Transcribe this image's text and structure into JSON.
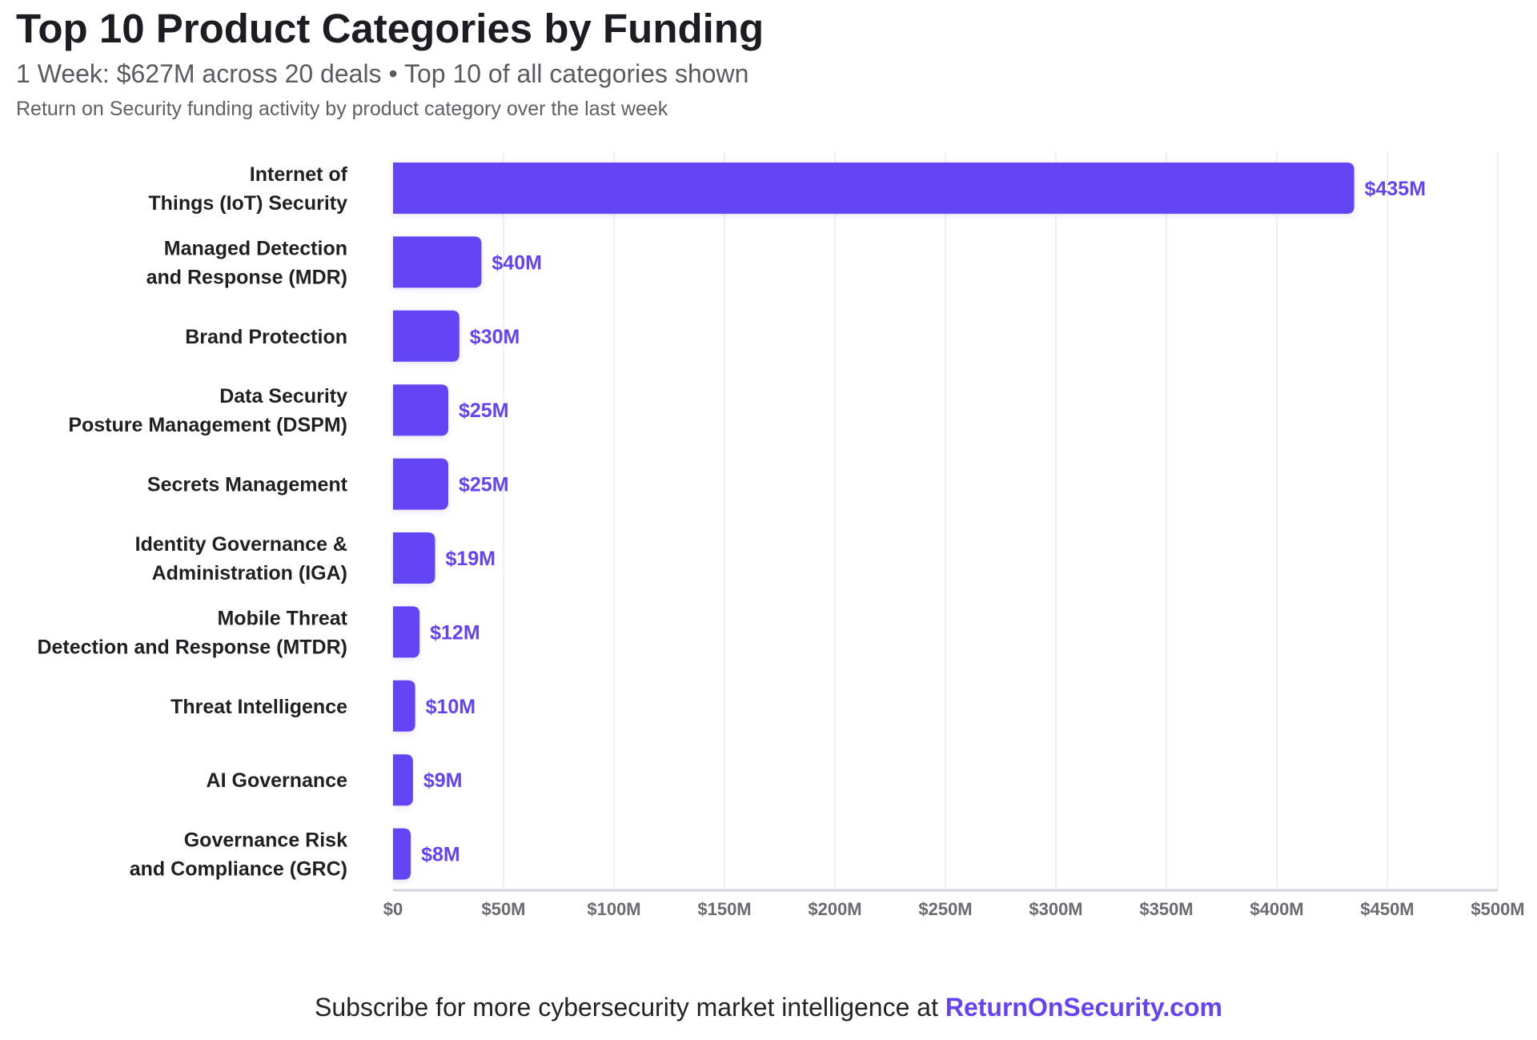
{
  "header": {
    "title": "Top 10 Product Categories by Funding",
    "subtitle": "1 Week: $627M across 20 deals • Top 10 of all categories shown",
    "description": "Return on Security funding activity by product category over the last week"
  },
  "footer": {
    "text": "Subscribe for more cybersecurity market intelligence at ",
    "link": "ReturnOnSecurity.com"
  },
  "colors": {
    "bar": "#6344f5",
    "value_label": "#6344f5",
    "category_label": "#1f1f24",
    "tick_label": "#6b6b72",
    "grid": "#ececf1",
    "axis": "#d4d4de"
  },
  "chart_data": {
    "type": "bar",
    "orientation": "horizontal",
    "title": "Top 10 Product Categories by Funding",
    "xlabel": "",
    "ylabel": "",
    "xlim": [
      0,
      500
    ],
    "grid": true,
    "categories": [
      [
        "Internet of",
        "Things (IoT) Security"
      ],
      [
        "Managed Detection",
        "and Response (MDR)"
      ],
      [
        "Brand Protection"
      ],
      [
        "Data Security",
        "Posture Management (DSPM)"
      ],
      [
        "Secrets Management"
      ],
      [
        "Identity Governance &",
        "Administration (IGA)"
      ],
      [
        "Mobile Threat",
        "Detection and Response (MTDR)"
      ],
      [
        "Threat Intelligence"
      ],
      [
        "AI Governance"
      ],
      [
        "Governance Risk",
        "and Compliance (GRC)"
      ]
    ],
    "values": [
      435,
      40,
      30,
      25,
      25,
      19,
      12,
      10,
      9,
      8
    ],
    "value_labels": [
      "$435M",
      "$40M",
      "$30M",
      "$25M",
      "$25M",
      "$19M",
      "$12M",
      "$10M",
      "$9M",
      "$8M"
    ],
    "ticks": [
      0,
      50,
      100,
      150,
      200,
      250,
      300,
      350,
      400,
      450,
      500
    ],
    "tick_labels": [
      "$0",
      "$50M",
      "$100M",
      "$150M",
      "$200M",
      "$250M",
      "$300M",
      "$350M",
      "$400M",
      "$450M",
      "$500M"
    ]
  }
}
